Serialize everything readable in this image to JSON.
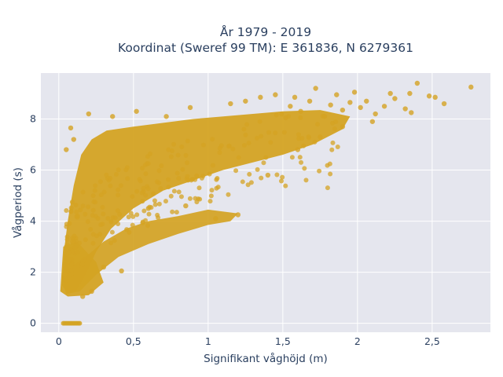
{
  "chart_data": {
    "type": "scatter",
    "title": [
      "År 1979 - 2019",
      "Koordinat (Sweref 99 TM): E 361836, N 6279361"
    ],
    "xlabel": "Signifikant våghöjd (m)",
    "ylabel": "Vågperiod (s)",
    "xlim": [
      -0.12,
      2.89
    ],
    "ylim": [
      -0.35,
      9.8
    ],
    "x_ticks": [
      0,
      0.5,
      1,
      1.5,
      2,
      2.5
    ],
    "x_tick_labels": [
      "0",
      "0,5",
      "1",
      "1,5",
      "2",
      "2,5"
    ],
    "y_ticks": [
      0,
      2,
      4,
      6,
      8
    ],
    "y_tick_labels": [
      "0",
      "2",
      "4",
      "6",
      "8"
    ],
    "grid": true,
    "legend": "none",
    "marker_color": "#d4a323",
    "plot_background": "#e5e6ee",
    "series": [
      {
        "points": [
          [
            2.76,
            9.25
          ],
          [
            2.58,
            8.6
          ],
          [
            2.52,
            8.85
          ],
          [
            2.48,
            8.9
          ],
          [
            2.4,
            9.4
          ],
          [
            2.35,
            9.0
          ],
          [
            2.36,
            8.25
          ],
          [
            2.32,
            8.4
          ],
          [
            2.25,
            8.8
          ],
          [
            2.22,
            9.0
          ],
          [
            2.18,
            8.5
          ],
          [
            2.12,
            8.2
          ],
          [
            2.06,
            8.7
          ],
          [
            2.02,
            8.45
          ],
          [
            1.98,
            9.05
          ],
          [
            1.95,
            8.65
          ],
          [
            1.9,
            8.35
          ],
          [
            1.86,
            8.95
          ],
          [
            1.82,
            8.55
          ],
          [
            1.78,
            8.1
          ],
          [
            1.72,
            9.2
          ],
          [
            1.68,
            8.7
          ],
          [
            1.62,
            8.3
          ],
          [
            1.58,
            8.85
          ],
          [
            1.55,
            8.5
          ],
          [
            1.52,
            8.05
          ],
          [
            1.45,
            8.95
          ],
          [
            1.35,
            8.85
          ],
          [
            1.25,
            8.7
          ],
          [
            1.15,
            8.6
          ],
          [
            0.88,
            8.45
          ],
          [
            0.72,
            8.1
          ],
          [
            0.52,
            8.3
          ],
          [
            0.36,
            8.1
          ],
          [
            0.2,
            8.2
          ],
          [
            0.08,
            7.65
          ],
          [
            0.1,
            7.2
          ],
          [
            0.05,
            6.8
          ],
          [
            0.6,
            4.5
          ],
          [
            0.85,
            4.6
          ],
          [
            1.05,
            4.1
          ],
          [
            1.2,
            4.25
          ],
          [
            0.3,
            2.2
          ],
          [
            0.42,
            2.05
          ],
          [
            0.16,
            1.05
          ],
          [
            0.22,
            1.25
          ],
          [
            0.04,
            1.9
          ],
          [
            1.4,
            5.8
          ],
          [
            1.6,
            6.8
          ],
          [
            1.75,
            7.3
          ],
          [
            1.9,
            7.7
          ],
          [
            2.1,
            7.9
          ]
        ]
      }
    ]
  }
}
